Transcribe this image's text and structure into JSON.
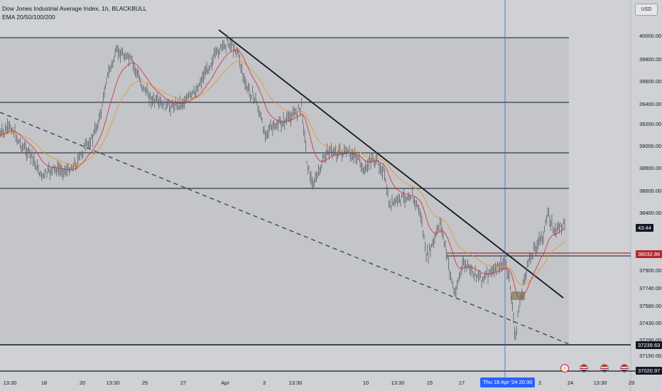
{
  "legend": {
    "title": "Dow Jones Industrial Average Index, 1h, BLACKBULL",
    "indicator": "EMA 20/50/100/200"
  },
  "currency_button": "USD",
  "price_axis": {
    "labels": [
      "40000.00",
      "39800.00",
      "39600.00",
      "39400.00",
      "39200.00",
      "39000.00",
      "38800.00",
      "38600.00",
      "38400.00",
      "37900.00",
      "37740.00",
      "37580.00",
      "37430.00",
      "37290.00",
      "37150.00"
    ],
    "price_min": 37020.97,
    "price_max": 40030
  },
  "price_tags": {
    "countdown": "43:44",
    "current": "38032.86",
    "lower_line": "37239.63",
    "bottom": "37020.97"
  },
  "time_axis": {
    "labels": [
      "13:30",
      "18",
      "20",
      "13:30",
      "25",
      "27",
      "Apr",
      "3",
      "13:30",
      "10",
      "13:30",
      "15",
      "17",
      "2",
      "24",
      "13:30",
      "29"
    ],
    "crosshair_label": "Thu 18 Apr '24   20:30"
  },
  "events": [
    "flash-event-icon",
    "us-flag-icon",
    "us-flag-icon",
    "us-flag-icon"
  ],
  "colors": {
    "background": "#cfd1d5",
    "ema_fast": "#d4373f",
    "ema_slow": "#e39a33",
    "crosshair": "#2962ff",
    "price_line": "#b2282c"
  },
  "chart_data": {
    "type": "line",
    "title": "Dow Jones Industrial Average Index, 1h, BLACKBULL",
    "xlabel": "",
    "ylabel": "",
    "ylim": [
      37020.97,
      40030
    ],
    "horizontal_levels": [
      39980,
      39400,
      38960,
      38640,
      38032.86,
      37239.63
    ],
    "series": [
      {
        "name": "",
        "x": [
          "13:30",
          "18",
          "20",
          "13:30",
          "25",
          "27",
          "Apr",
          "3",
          "13:30",
          "10",
          "13:30",
          "15",
          "17",
          "Thu 18 Apr '24   20:30",
          "24"
        ],
        "values": [
          39000,
          38730,
          38800,
          39880,
          39440,
          39380,
          40000,
          39150,
          39300,
          38950,
          38780,
          37870,
          37700,
          37520,
          38300
        ]
      }
    ]
  }
}
